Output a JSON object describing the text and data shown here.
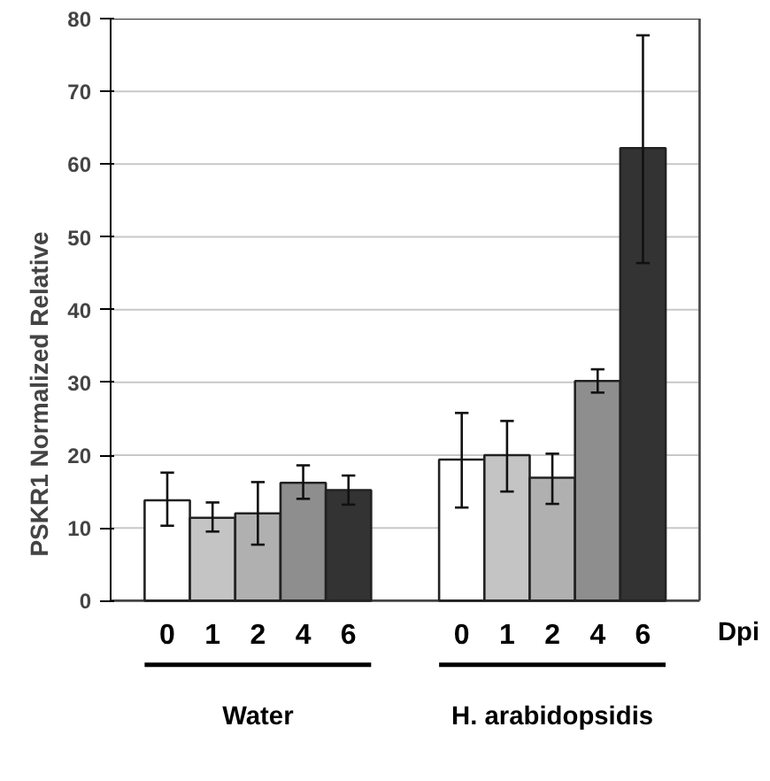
{
  "chart_data": {
    "type": "bar",
    "ylabel": "PSKR1 Normalized Relative",
    "xlabel": "Dpi",
    "categories": [
      "Water",
      "H. arabidopsidis"
    ],
    "series": [
      {
        "name": "0",
        "color": "#ffffff",
        "values": [
          13.8,
          19.4
        ],
        "errors": [
          [
            10.3,
            17.6
          ],
          [
            12.8,
            25.8
          ]
        ]
      },
      {
        "name": "1",
        "color": "#c4c4c4",
        "values": [
          11.4,
          20.0
        ],
        "errors": [
          [
            9.5,
            13.5
          ],
          [
            15.0,
            24.7
          ]
        ]
      },
      {
        "name": "2",
        "color": "#b0b0b0",
        "values": [
          12.0,
          16.9
        ],
        "errors": [
          [
            7.7,
            16.3
          ],
          [
            13.3,
            20.2
          ]
        ]
      },
      {
        "name": "4",
        "color": "#8e8e8e",
        "values": [
          16.2,
          30.2
        ],
        "errors": [
          [
            14.0,
            18.6
          ],
          [
            28.6,
            31.8
          ]
        ]
      },
      {
        "name": "6",
        "color": "#333333",
        "values": [
          15.2,
          62.2
        ],
        "errors": [
          [
            13.2,
            17.2
          ],
          [
            46.4,
            77.7
          ]
        ]
      }
    ],
    "ylim": [
      0,
      80
    ],
    "yticks": [
      0,
      10,
      20,
      30,
      40,
      50,
      60,
      70,
      80
    ],
    "grid": "y"
  }
}
